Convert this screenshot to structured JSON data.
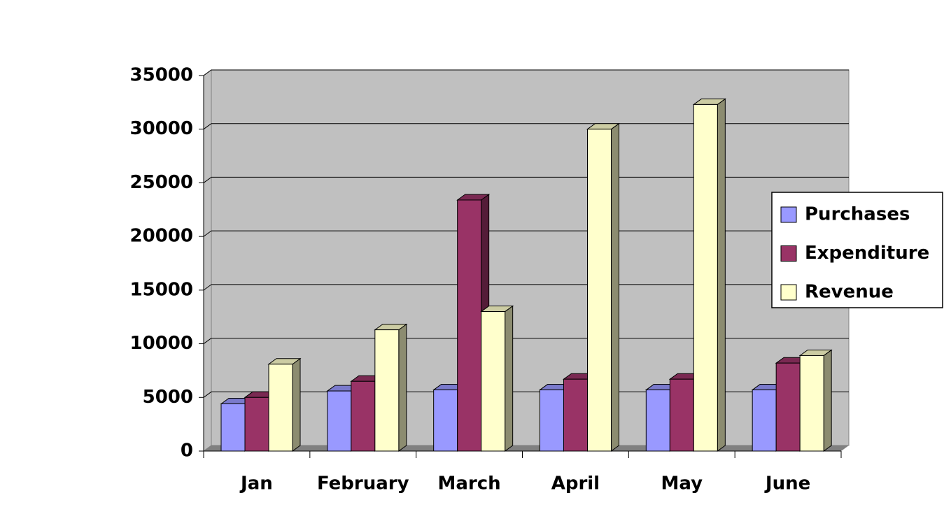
{
  "chart_data": {
    "type": "bar3d",
    "categories": [
      "Jan",
      "February",
      "March",
      "April",
      "May",
      "June"
    ],
    "series": [
      {
        "name": "Purchases",
        "color": "#9999ff",
        "values": [
          4400,
          5600,
          5700,
          5700,
          5700,
          5700
        ]
      },
      {
        "name": "Expenditure",
        "color": "#993366",
        "values": [
          5000,
          6500,
          23400,
          6700,
          6700,
          8200
        ]
      },
      {
        "name": "Revenue",
        "color": "#ffffcc",
        "values": [
          8100,
          11300,
          13000,
          30000,
          32300,
          8900
        ]
      }
    ],
    "ylim": [
      0,
      35000
    ],
    "yticks": [
      0,
      5000,
      10000,
      15000,
      20000,
      25000,
      30000,
      35000
    ],
    "grid": true,
    "legend": "right"
  }
}
